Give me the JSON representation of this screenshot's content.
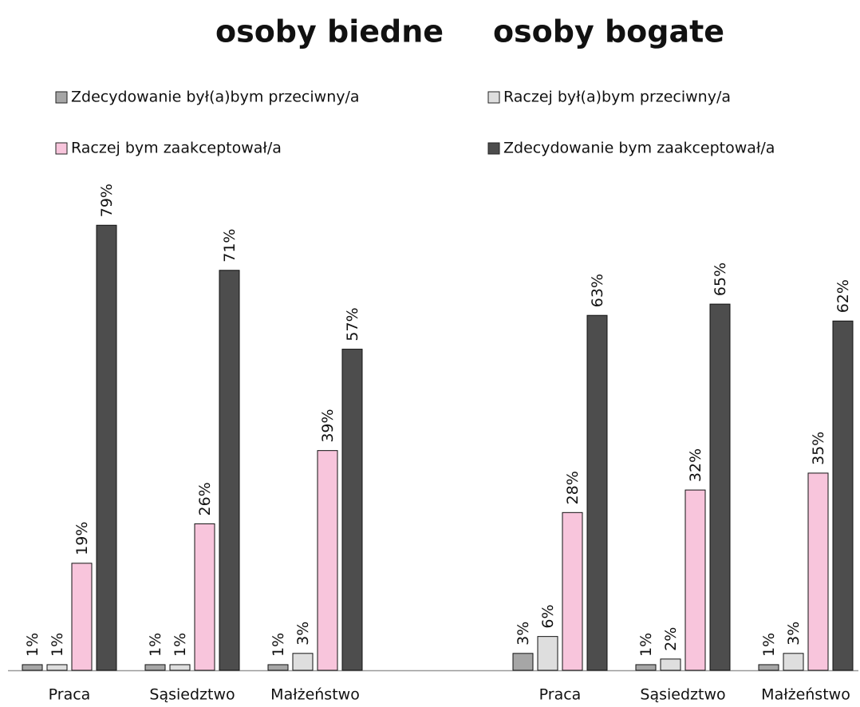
{
  "chart_data": [
    {
      "type": "bar",
      "title": "osoby biedne",
      "categories": [
        "Praca",
        "Sąsiedztwo",
        "Małżeństwo"
      ],
      "ylim": [
        0,
        100
      ],
      "series": [
        {
          "name": "Zdecydowanie był(a)bym przeciwny/a",
          "color": "#a6a6a6",
          "values": [
            1,
            1,
            1
          ],
          "value_labels": [
            "1%",
            "1%",
            "1%"
          ]
        },
        {
          "name": "Raczej był(a)bym przeciwny/a",
          "color": "#dedede",
          "values": [
            1,
            1,
            3
          ],
          "value_labels": [
            "1%",
            "1%",
            "3%"
          ]
        },
        {
          "name": "Raczej bym zaakceptował/a",
          "color": "#f8c5dc",
          "values": [
            19,
            26,
            39
          ],
          "value_labels": [
            "19%",
            "26%",
            "39%"
          ]
        },
        {
          "name": "Zdecydowanie bym zaakceptował/a",
          "color": "#4d4d4d",
          "values": [
            79,
            71,
            57
          ],
          "value_labels": [
            "79%",
            "71%",
            "57%"
          ]
        }
      ]
    },
    {
      "type": "bar",
      "title": "osoby bogate",
      "categories": [
        "Praca",
        "Sąsiedztwo",
        "Małżeństwo"
      ],
      "ylim": [
        0,
        100
      ],
      "series": [
        {
          "color": "#a6a6a6",
          "values": [
            3,
            1,
            1
          ],
          "value_labels": [
            "3%",
            "1%",
            "1%"
          ]
        },
        {
          "color": "#dedede",
          "values": [
            6,
            2,
            3
          ],
          "value_labels": [
            "6%",
            "2%",
            "3%"
          ]
        },
        {
          "color": "#f8c5dc",
          "values": [
            28,
            32,
            35
          ],
          "value_labels": [
            "28%",
            "32%",
            "35%"
          ]
        },
        {
          "color": "#4d4d4d",
          "values": [
            63,
            65,
            62
          ],
          "value_labels": [
            "63%",
            "65%",
            "62%"
          ]
        }
      ]
    }
  ]
}
